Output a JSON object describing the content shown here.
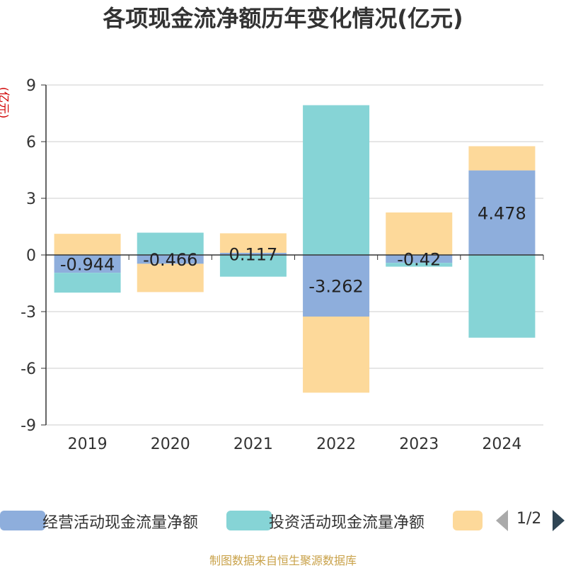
{
  "chart_data": {
    "type": "bar",
    "stacked": true,
    "title": "各项现金流净额历年变化情况(亿元)",
    "ylabel": "(亿元)",
    "xlabel": "",
    "categories": [
      "2019",
      "2020",
      "2021",
      "2022",
      "2023",
      "2024"
    ],
    "ylim": [
      -9,
      9
    ],
    "yticks": [
      -9,
      -6,
      -3,
      0,
      3,
      6,
      9
    ],
    "grid": true,
    "series": [
      {
        "name": "经营活动现金流量净额",
        "color": "#8eaedc",
        "values": [
          -0.944,
          -0.466,
          0.117,
          -3.262,
          -0.42,
          4.478
        ],
        "labels": [
          "-0.944",
          "-0.466",
          "0.117",
          "-3.262",
          "-0.42",
          "4.478"
        ]
      },
      {
        "name": "投资活动现金流量净额",
        "color": "#86d4d6",
        "values": [
          -1.05,
          1.18,
          -1.15,
          7.93,
          -0.2,
          -4.38
        ]
      },
      {
        "name": "",
        "color": "#fdd99a",
        "values": [
          1.12,
          -1.5,
          1.03,
          -4.03,
          2.25,
          1.28
        ]
      }
    ]
  },
  "legend": {
    "items": [
      "经营活动现金流量净额",
      "投资活动现金流量净额",
      ""
    ],
    "page": "1/2"
  },
  "source": "制图数据来自恒生聚源数据库"
}
